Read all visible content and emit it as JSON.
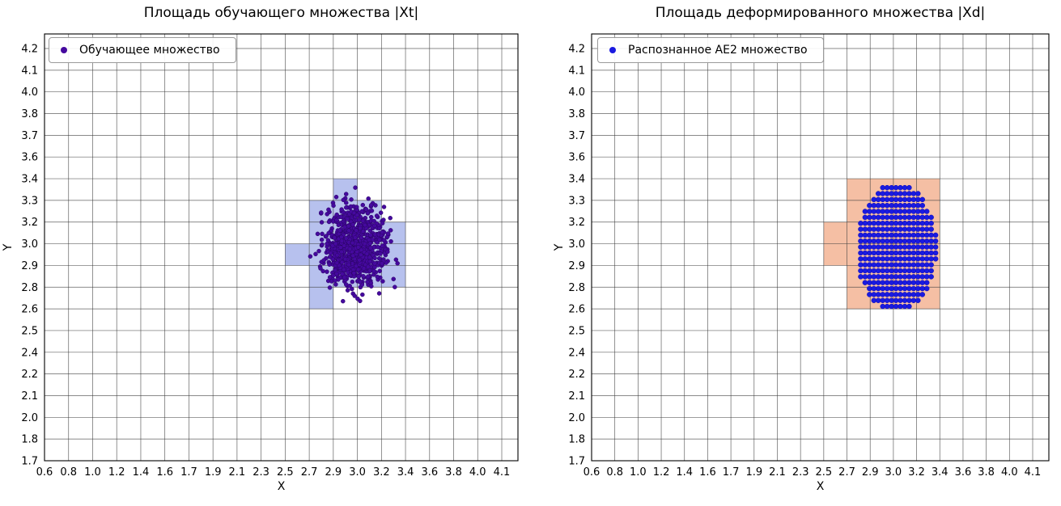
{
  "figure": {
    "background": "#ffffff"
  },
  "chart_data": [
    {
      "type": "scatter",
      "title": "Площадь обучающего множества |Xt|",
      "xlabel": "X",
      "ylabel": "Y",
      "grid": true,
      "legend_position": "upper left",
      "legend": [
        {
          "label": "Обучающее множество",
          "marker_color": "#45099e"
        }
      ],
      "x_tick_labels": [
        "0.6",
        "0.8",
        "1.0",
        "1.2",
        "1.4",
        "1.6",
        "1.7",
        "1.9",
        "2.1",
        "2.3",
        "2.5",
        "2.7",
        "2.9",
        "3.0",
        "3.2",
        "3.4",
        "3.6",
        "3.8",
        "4.0",
        "4.1"
      ],
      "y_tick_labels": [
        "1.7",
        "1.8",
        "2.0",
        "2.1",
        "2.2",
        "2.4",
        "2.5",
        "2.6",
        "2.8",
        "2.9",
        "3.0",
        "3.2",
        "3.3",
        "3.4",
        "3.6",
        "3.7",
        "3.8",
        "4.0",
        "4.1",
        "4.2"
      ],
      "x_range": [
        0.6,
        4.22
      ],
      "y_range": [
        1.7,
        4.29
      ],
      "highlight_cells": {
        "fill": "#b7c1ee",
        "rects": [
          {
            "x0": 2.9,
            "x1": 3.0,
            "y0": 3.3,
            "y1": 3.4
          },
          {
            "x0": 2.7,
            "x1": 3.2,
            "y0": 3.2,
            "y1": 3.3
          },
          {
            "x0": 2.7,
            "x1": 3.4,
            "y0": 2.8,
            "y1": 3.2
          },
          {
            "x0": 2.5,
            "x1": 2.7,
            "y0": 2.9,
            "y1": 3.0
          },
          {
            "x0": 2.7,
            "x1": 2.9,
            "y0": 2.6,
            "y1": 2.8
          }
        ]
      },
      "points": {
        "kind": "gaussian_cluster",
        "color": "#45099e",
        "edge_color": "#2a0464",
        "radius_px": 2.5,
        "center": [
          2.97,
          3.0
        ],
        "std": [
          0.115,
          0.12
        ],
        "n": 950,
        "seed": 42
      }
    },
    {
      "type": "scatter",
      "title": "Площадь деформированного множества |Xd|",
      "xlabel": "X",
      "ylabel": "Y",
      "grid": true,
      "legend_position": "upper left",
      "legend": [
        {
          "label": "Распознанное AE2 множество",
          "marker_color": "#1a1ae0"
        }
      ],
      "x_tick_labels": [
        "0.6",
        "0.8",
        "1.0",
        "1.2",
        "1.4",
        "1.6",
        "1.7",
        "1.9",
        "2.1",
        "2.3",
        "2.5",
        "2.7",
        "2.9",
        "3.0",
        "3.2",
        "3.4",
        "3.6",
        "3.8",
        "4.0",
        "4.1"
      ],
      "y_tick_labels": [
        "1.7",
        "1.8",
        "2.0",
        "2.1",
        "2.2",
        "2.4",
        "2.5",
        "2.6",
        "2.8",
        "2.9",
        "3.0",
        "3.2",
        "3.3",
        "3.4",
        "3.6",
        "3.7",
        "3.8",
        "4.0",
        "4.1",
        "4.2"
      ],
      "x_range": [
        0.6,
        4.22
      ],
      "y_range": [
        1.7,
        4.29
      ],
      "highlight_cells": {
        "fill": "#f5bfa4",
        "rects": [
          {
            "x0": 2.7,
            "x1": 3.4,
            "y0": 2.6,
            "y1": 3.4
          },
          {
            "x0": 2.5,
            "x1": 2.7,
            "y0": 2.9,
            "y1": 3.2
          }
        ]
      },
      "points": {
        "kind": "ellipse_lattice",
        "color": "#1a1ae0",
        "edge_color": "#0c0cb4",
        "radius_px": 3,
        "center": [
          3.02,
          2.99
        ],
        "rx": 0.32,
        "ry": 0.39,
        "step_x": 0.035,
        "step_y": 0.036
      }
    }
  ]
}
